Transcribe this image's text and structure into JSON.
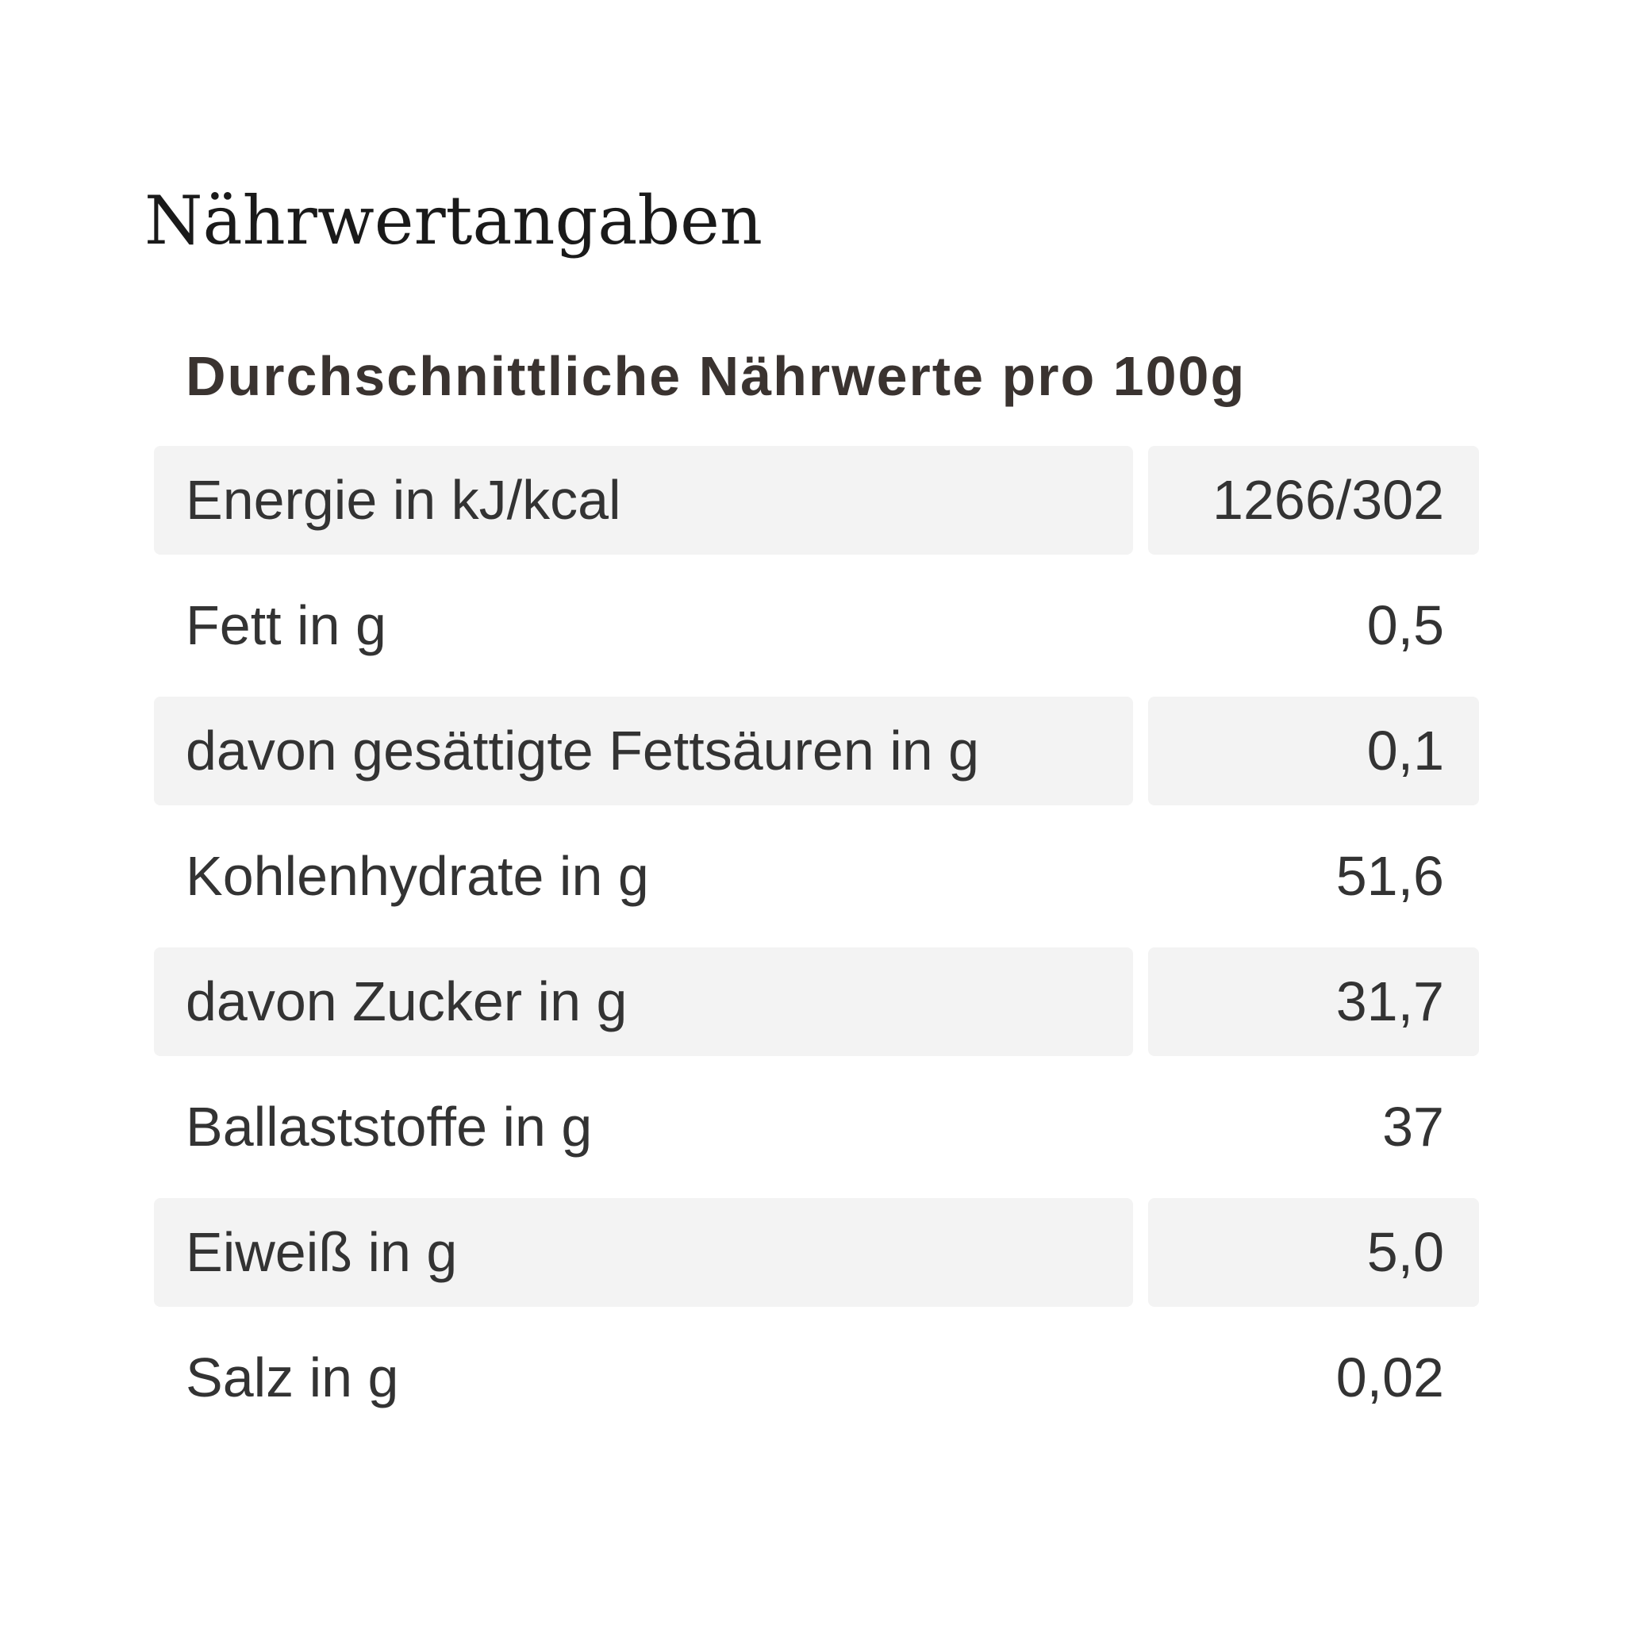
{
  "title": "Nährwertangaben",
  "table": {
    "header": "Durchschnittliche Nährwerte pro 100g",
    "rows": [
      [
        "Energie in kJ/kcal",
        "1266/302"
      ],
      [
        "Fett in g",
        "0,5"
      ],
      [
        "davon gesättigte Fettsäuren in g",
        "0,1"
      ],
      [
        "Kohlenhydrate in g",
        "51,6"
      ],
      [
        "davon Zucker in g",
        "31,7"
      ],
      [
        "Ballaststoffe in g",
        "37"
      ],
      [
        "Eiweiß in g",
        "5,0"
      ],
      [
        "Salz in g",
        "0,02"
      ]
    ]
  }
}
